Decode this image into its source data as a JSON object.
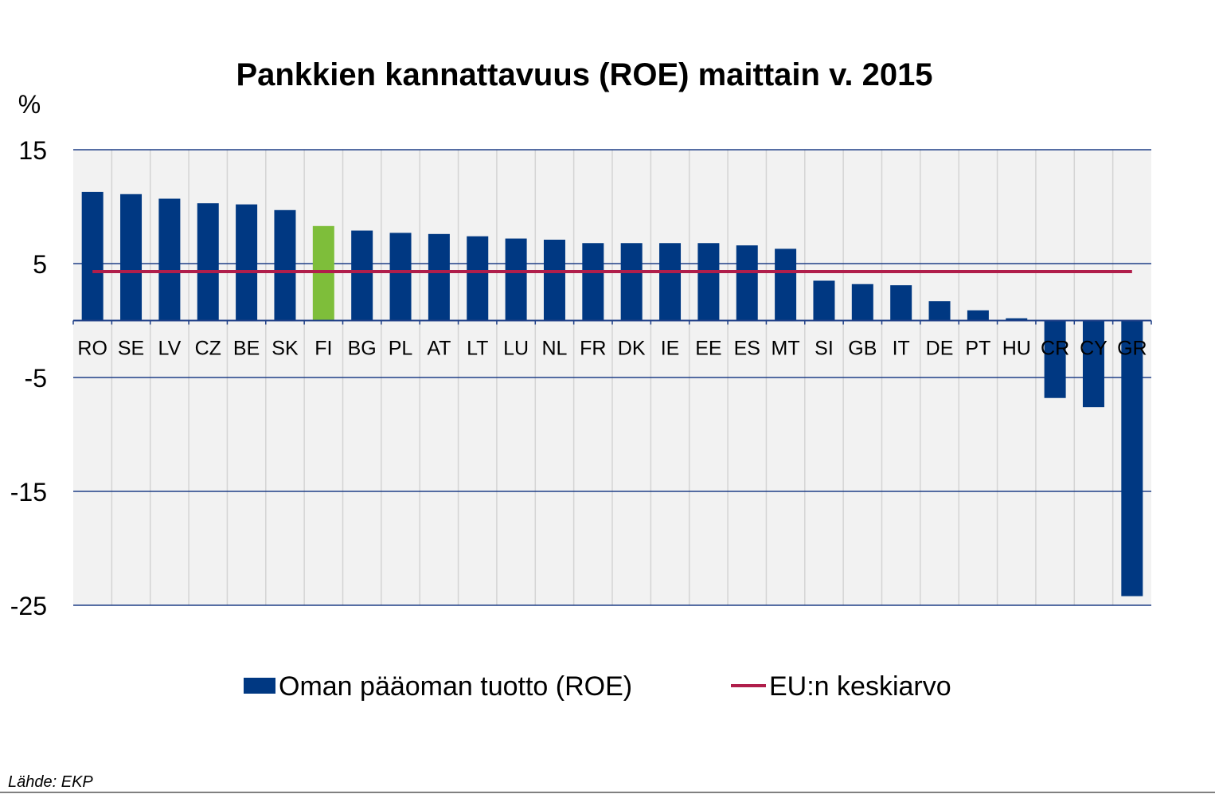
{
  "chart_data": {
    "type": "bar",
    "title": "Pankkien kannattavuus (ROE) maittain v. 2015",
    "ylabel": "%",
    "ylim": [
      -25,
      15
    ],
    "yticks": [
      15,
      5,
      -5,
      -15,
      -25
    ],
    "grid": true,
    "legend_position": "bottom",
    "categories": [
      "RO",
      "SE",
      "LV",
      "CZ",
      "BE",
      "SK",
      "FI",
      "BG",
      "PL",
      "AT",
      "LT",
      "LU",
      "NL",
      "FR",
      "DK",
      "IE",
      "EE",
      "ES",
      "MT",
      "SI",
      "GB",
      "IT",
      "DE",
      "PT",
      "HU",
      "CR",
      "CY",
      "GR"
    ],
    "highlight": "FI",
    "series": [
      {
        "name": "Oman pääoman tuotto (ROE)",
        "type": "bar",
        "color": "#003882",
        "values": [
          11.3,
          11.1,
          10.7,
          10.3,
          10.2,
          9.7,
          8.3,
          7.9,
          7.7,
          7.6,
          7.4,
          7.2,
          7.1,
          6.8,
          6.8,
          6.8,
          6.8,
          6.6,
          6.3,
          3.5,
          3.2,
          3.1,
          1.7,
          0.9,
          0.2,
          -6.8,
          -7.6,
          -24.2
        ]
      },
      {
        "name": "EU:n keskiarvo",
        "type": "line",
        "color": "#b01e4b",
        "value": 4.3
      }
    ],
    "highlight_color": "#7ebe3a",
    "source": "Lähde: EKP"
  }
}
